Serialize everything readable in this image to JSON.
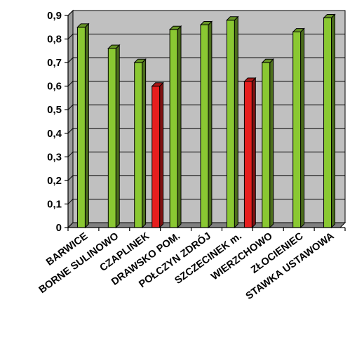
{
  "chart_data": {
    "type": "bar",
    "title": "",
    "xlabel": "",
    "ylabel": "",
    "ylim": [
      0,
      0.9
    ],
    "ytick_labels": [
      "0",
      "0,1",
      "0,2",
      "0,3",
      "0,4",
      "0,5",
      "0,6",
      "0,7",
      "0,8",
      "0,9"
    ],
    "categories": [
      "BARWICE",
      "BORNE SULINOWO",
      "CZAPLINEK",
      "DRAWSKO POM.",
      "POŁCZYN ZDRÓJ",
      "SZCZECINEK m.",
      "WIERZCHOWO",
      "ZŁOCIENIEC",
      "STAWKA USTAWOWA"
    ],
    "series": [
      {
        "values": [
          0.85,
          0.76,
          0.7,
          0.84,
          0.86,
          0.88,
          0.7,
          0.83,
          0.89
        ]
      },
      {
        "values": [
          null,
          null,
          0.6,
          null,
          null,
          0.62,
          null,
          null,
          null
        ]
      }
    ],
    "grid": true,
    "legend": "none",
    "colors": {
      "plot_background": "#c0c0c0",
      "series_1": "#8ac832",
      "series_2": "#e61e1e",
      "gridlines": "#000000"
    }
  }
}
